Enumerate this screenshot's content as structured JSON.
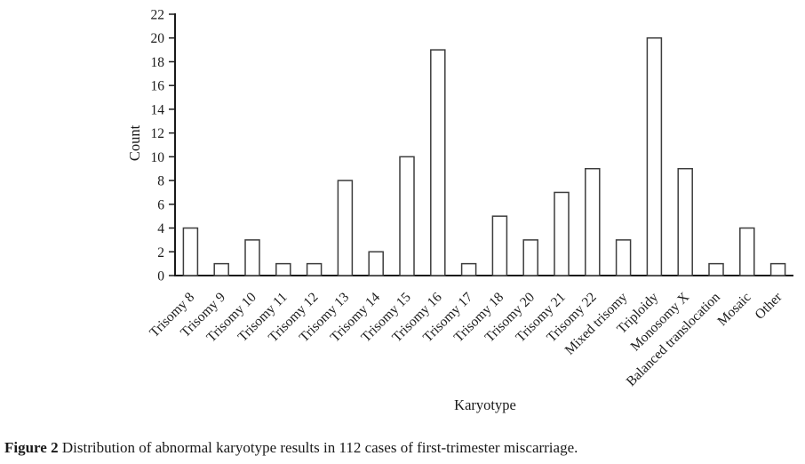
{
  "figure": {
    "caption_label": "Figure 2",
    "caption_text": " Distribution of abnormal karyotype results in 112 cases of first-trimester miscarriage."
  },
  "chart_data": {
    "type": "bar",
    "title": "",
    "xlabel": "Karyotype",
    "ylabel": "Count",
    "categories": [
      "Trisomy 8",
      "Trisomy 9",
      "Trisomy 10",
      "Trisomy 11",
      "Trisomy 12",
      "Trisomy 13",
      "Trisomy 14",
      "Trisomy 15",
      "Trisomy 16",
      "Trisomy 17",
      "Trisomy 18",
      "Trisomy 20",
      "Trisomy 21",
      "Trisomy 22",
      "Mixed trisomy",
      "Triploidy",
      "Monosomy X",
      "Balanced translocation",
      "Mosaic",
      "Other"
    ],
    "values": [
      4,
      1,
      3,
      1,
      1,
      8,
      2,
      10,
      19,
      1,
      5,
      3,
      7,
      9,
      3,
      20,
      9,
      1,
      4,
      1
    ],
    "total_cases": 112,
    "ylim": [
      0,
      22
    ],
    "ytick_step": 2,
    "grid": false,
    "legend": "none",
    "bar_fill": "#ffffff",
    "bar_stroke": "#3d3d3d",
    "axis_color": "#1a1a1a",
    "text_color": "#1a1a1a"
  }
}
